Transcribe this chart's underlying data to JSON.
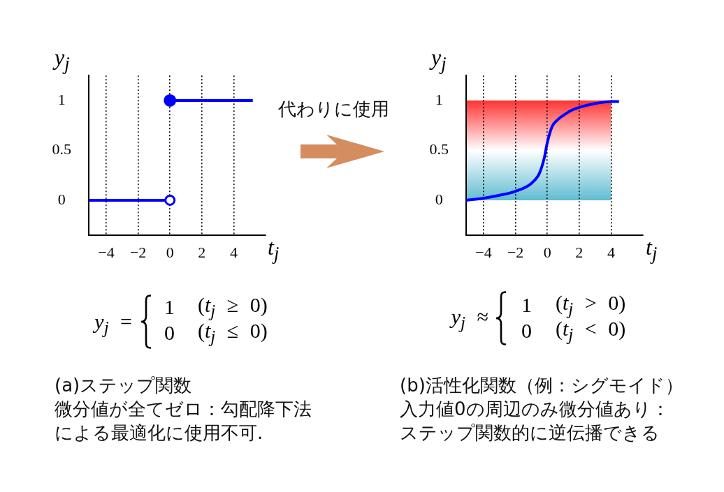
{
  "chart_data": [
    {
      "type": "line",
      "title": "(a)ステップ関数",
      "xlabel": "t$_{j}$",
      "ylabel": "y$_{j}$",
      "xlim": [
        -5.1,
        6
      ],
      "ylim": [
        -0.35,
        1.25
      ],
      "xticks": [
        -4,
        -2,
        0,
        2,
        4
      ],
      "yticks": [
        0,
        0.5,
        1
      ],
      "grid": "x",
      "series": [
        {
          "type": "line",
          "x": [
            -5.1,
            0
          ],
          "values": [
            0,
            0
          ],
          "color": "#0000ff"
        },
        {
          "type": "line",
          "x": [
            0,
            5.2
          ],
          "values": [
            1,
            1
          ],
          "color": "#0000ff"
        },
        {
          "type": "scatter",
          "x": [
            0
          ],
          "values": [
            1
          ],
          "color": "#0000ff",
          "marker": "circle"
        },
        {
          "type": "scatter",
          "x": [
            0
          ],
          "values": [
            0
          ],
          "color": "#0000ff",
          "marker": "circle"
        }
      ],
      "annotations": [
        "y$_{j}$ =",
        "1",
        "(t$_{j}$ ≥ 0)",
        "0",
        "(t$_{j}$ ≤ 0)",
        "微分値が全てゼロ：勾配降下法",
        "による最適化に使用不可.",
        "代わりに使用"
      ]
    },
    {
      "type": "line",
      "title": "(b)活性化関数（例：シグモイド）",
      "xlabel": "t$_{j}$",
      "ylabel": "y$_{j}$",
      "xlim": [
        -5.1,
        6
      ],
      "ylim": [
        -0.35,
        1.25
      ],
      "xticks": [
        -4,
        -2,
        0,
        2,
        4
      ],
      "yticks": [
        0,
        0.5,
        1
      ],
      "grid": "x",
      "series": [
        {
          "x": [
            -5.1,
            -4,
            -3,
            -2,
            -1,
            -0.5,
            -0.2,
            0,
            0.3,
            0.6,
            1,
            1.5,
            2,
            3,
            4,
            4.5
          ],
          "values": [
            0,
            0.02,
            0.05,
            0.09,
            0.17,
            0.27,
            0.42,
            0.58,
            0.74,
            0.8,
            0.85,
            0.9,
            0.93,
            0.97,
            0.99,
            0.99
          ],
          "color": "#0000ff"
        }
      ],
      "bands": [
        {
          "axis": "y",
          "from": 0.5,
          "to": 1,
          "color": "#ff3333"
        },
        {
          "axis": "y",
          "from": 0,
          "to": 0.5,
          "color": "#60bcd2"
        }
      ],
      "annotations": [
        "y$_{j}$ ≈",
        "1",
        "(t$_{j}$ > 0)",
        "0",
        "(t$_{j}$ < 0)",
        "入力値0の周辺のみ微分値あり：",
        "ステップ関数的に逆伝播できる"
      ]
    }
  ]
}
